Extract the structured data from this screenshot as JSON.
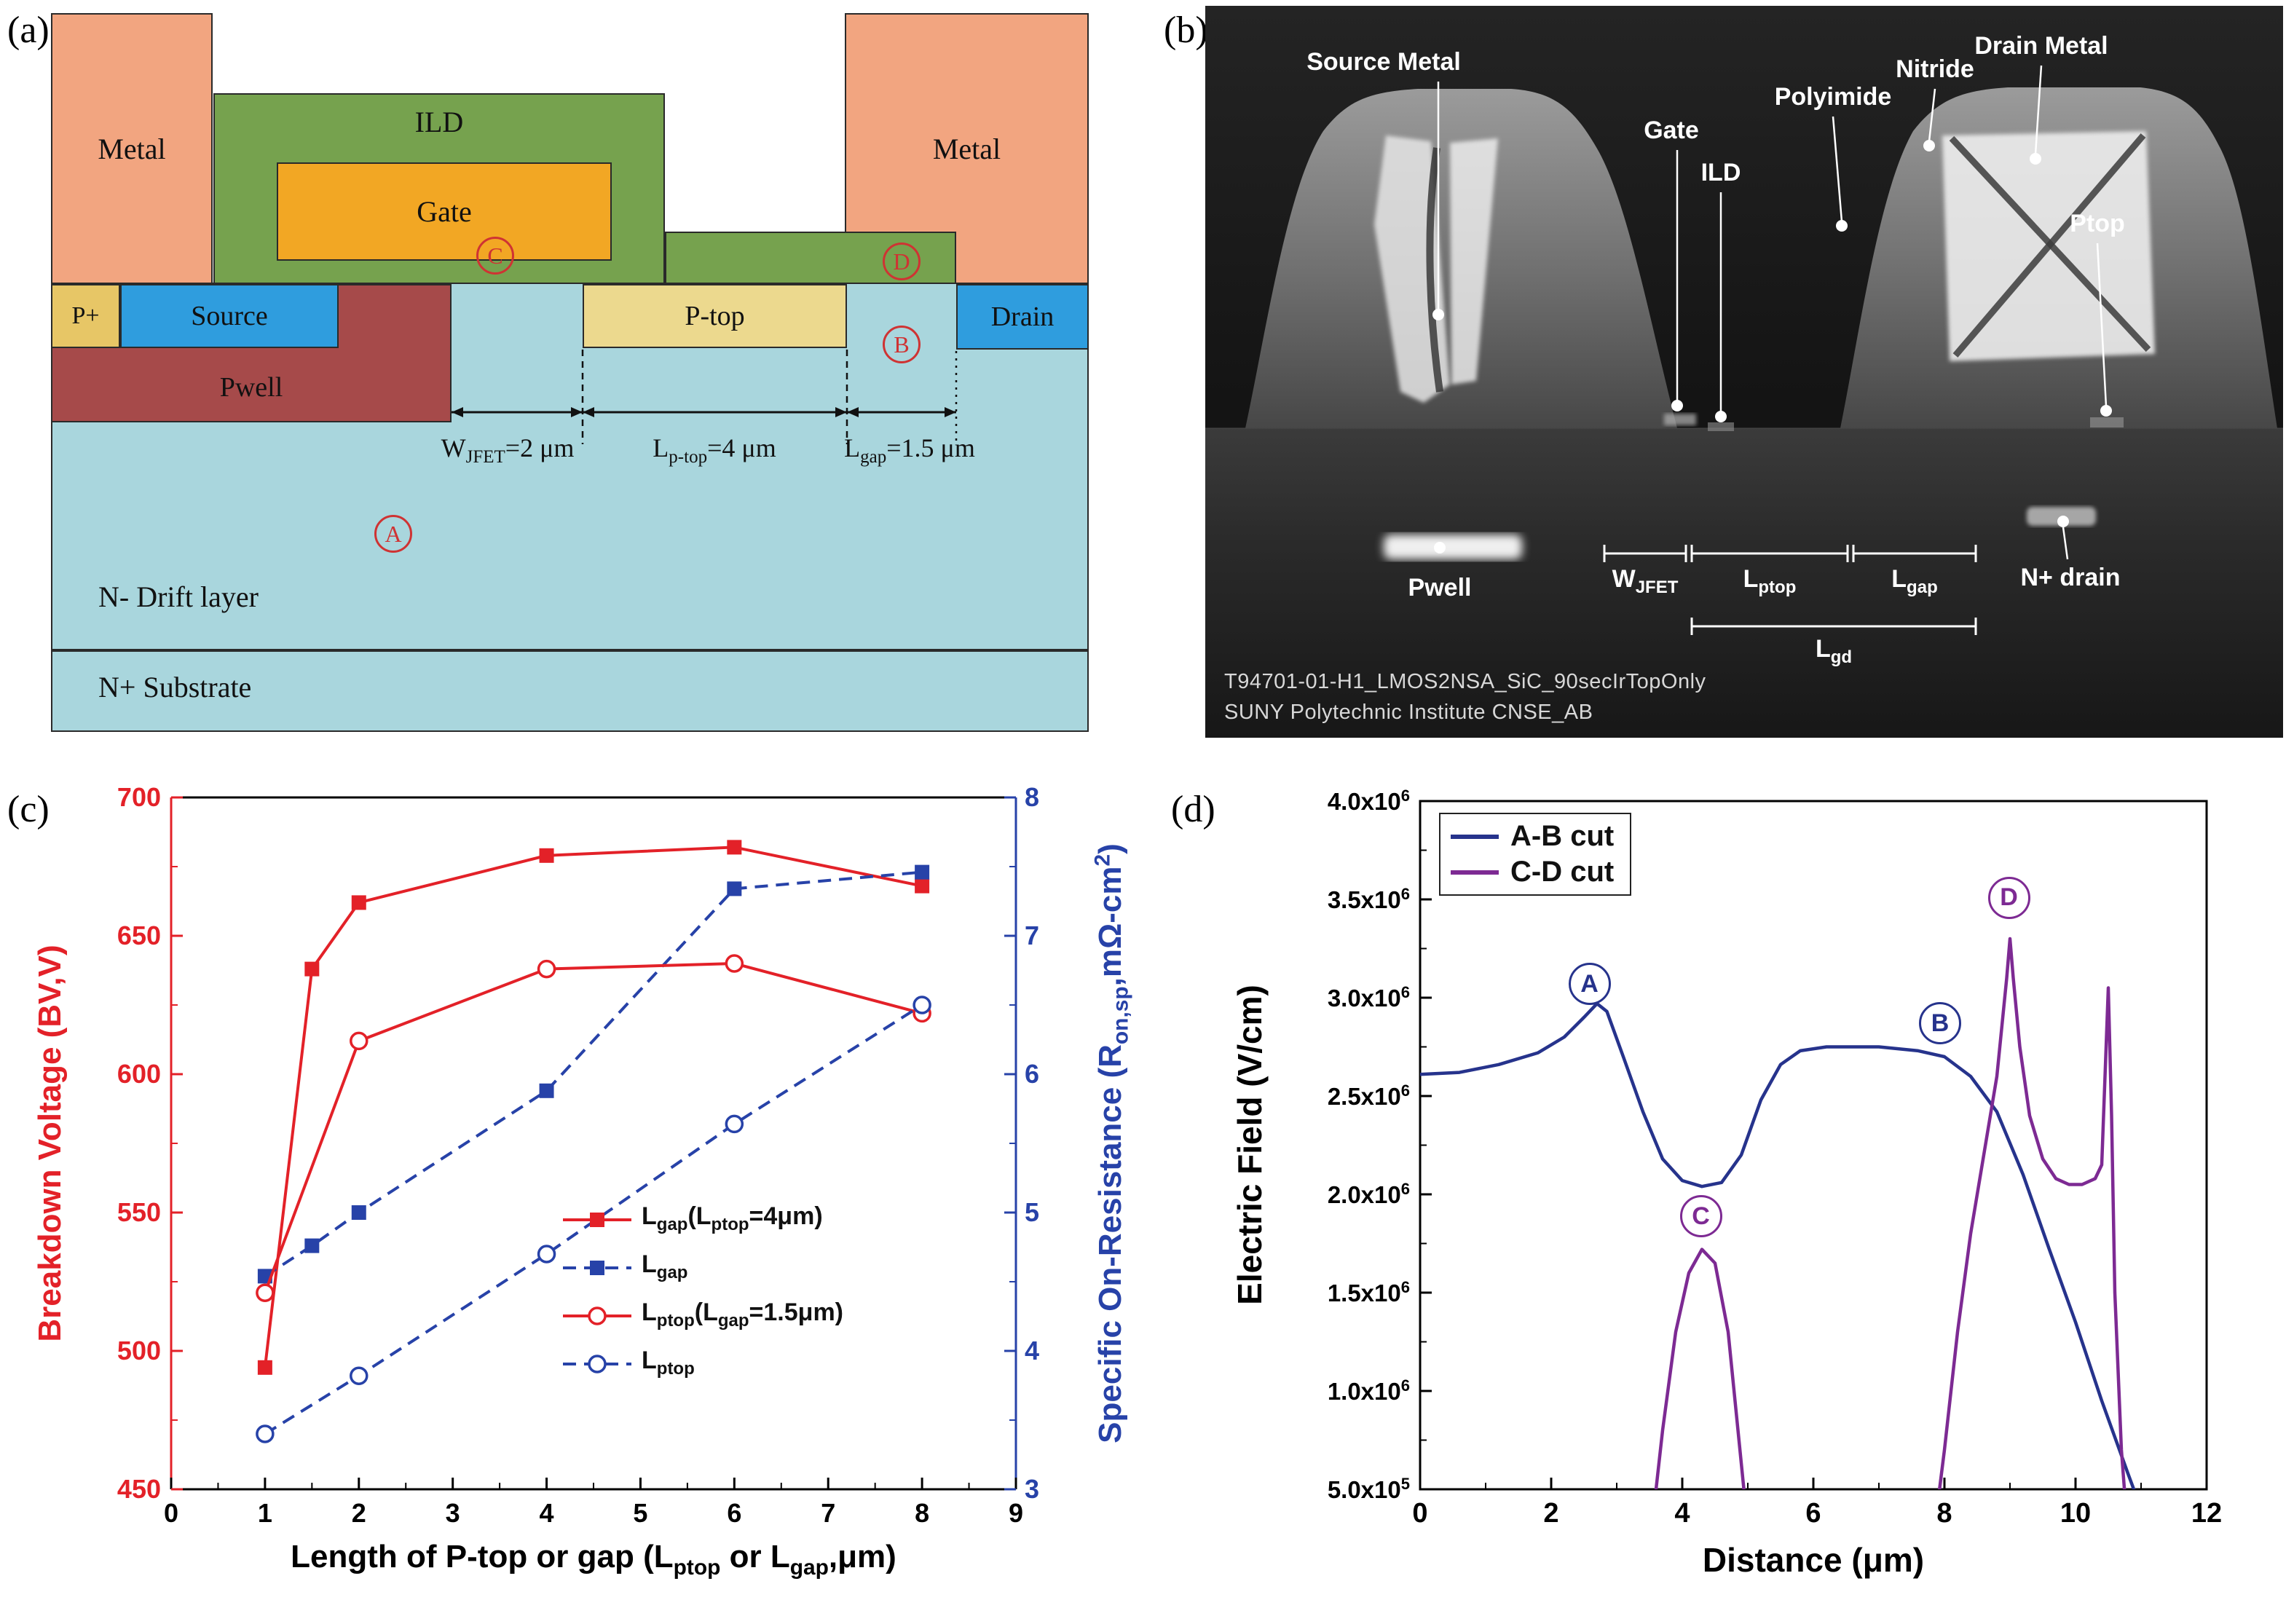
{
  "figure": {
    "panel_labels": {
      "a": "(a)",
      "b": "(b)",
      "c": "(c)",
      "d": "(d)"
    }
  },
  "panel_a": {
    "regions": {
      "metal_left": "Metal",
      "metal_right": "Metal",
      "ild": "ILD",
      "gate": "Gate",
      "p_plus": "P+",
      "source": "Source",
      "pwell": "Pwell",
      "p_top": "P-top",
      "drain": "Drain",
      "drift": "N- Drift layer",
      "substrate": "N+ Substrate"
    },
    "dimensions": {
      "wjfet": "W<sub>JFET</sub>=2 μm",
      "lptop": "L<sub>p-top</sub>=4 μm",
      "lgap": "L<sub>gap</sub>=1.5 μm"
    },
    "markers": {
      "a": "A",
      "b": "B",
      "c": "C",
      "d": "D"
    },
    "colors": {
      "metal": "#f2a580",
      "ild": "#76a24e",
      "gate": "#f2a724",
      "body": "#a9d6dd",
      "p_plus": "#e7c666",
      "p_top": "#ecd98e",
      "n_contact": "#2f9dde",
      "pwell": "#a64a4a",
      "marker_circle": "#cf3333"
    }
  },
  "panel_b": {
    "labels": {
      "source_metal": "Source Metal",
      "gate": "Gate",
      "ild": "ILD",
      "polyimide": "Polyimide",
      "nitride": "Nitride",
      "drain_metal": "Drain Metal",
      "ptop": "Ptop",
      "pwell": "Pwell",
      "wjfet": "W<sub>JFET</sub>",
      "lptop": "L<sub>ptop</sub>",
      "lgap": "L<sub>gap</sub>",
      "lgd": "L<sub>gd</sub>",
      "n_drain": "N+ drain"
    },
    "captions": [
      "T94701-01-H1_LMOS2NSA_SiC_90secIrTopOnly",
      "SUNY Polytechnic Institute CNSE_AB"
    ]
  },
  "chart_data": [
    {
      "id": "c",
      "type": "line",
      "xlabel": "Length of P-top or gap (L<sub>ptop</sub> or L<sub>gap</sub>,μm)",
      "ylabel_left": "Breakdown Voltage (BV,V)",
      "ylabel_right": "Specific On-Resistance (R<sub>on,sp</sub>,mΩ-cm<sup>2</sup>)",
      "xlim": [
        0,
        9
      ],
      "xticks": [
        0,
        1,
        2,
        3,
        4,
        5,
        6,
        7,
        8,
        9
      ],
      "ylim_left": [
        450,
        700
      ],
      "yticks_left": [
        450,
        500,
        550,
        600,
        650,
        700
      ],
      "ylim_right": [
        3,
        8
      ],
      "yticks_right": [
        3,
        4,
        5,
        6,
        7,
        8
      ],
      "grid": false,
      "legend_position": "center-right",
      "axis_colors": {
        "left": "#e32128",
        "right": "#2742a8",
        "frame": "#000000"
      },
      "series": [
        {
          "name": "L<sub>gap</sub>(L<sub>ptop</sub>=4μm)",
          "axis": "left",
          "color": "#e32128",
          "line": "solid",
          "marker": "square-filled",
          "x": [
            1,
            1.5,
            2,
            4,
            6,
            8
          ],
          "y": [
            494,
            638,
            662,
            679,
            682,
            668
          ]
        },
        {
          "name": "L<sub>gap</sub>",
          "axis": "right",
          "color": "#2742a8",
          "line": "dashed",
          "marker": "square-filled",
          "x": [
            1,
            1.5,
            2,
            4,
            6,
            8
          ],
          "y": [
            4.54,
            4.76,
            5.0,
            5.88,
            7.34,
            7.46
          ]
        },
        {
          "name": "L<sub>ptop</sub>(L<sub>gap</sub>=1.5μm)",
          "axis": "left",
          "color": "#e32128",
          "line": "solid",
          "marker": "circle-open",
          "x": [
            1,
            2,
            4,
            6,
            8
          ],
          "y": [
            521,
            612,
            638,
            640,
            622
          ]
        },
        {
          "name": "L<sub>ptop</sub>",
          "axis": "right",
          "color": "#2742a8",
          "line": "dashed",
          "marker": "circle-open",
          "x": [
            1,
            2,
            4,
            6,
            8
          ],
          "y": [
            3.4,
            3.82,
            4.7,
            5.64,
            6.5
          ]
        }
      ]
    },
    {
      "id": "d",
      "type": "line",
      "xlabel": "Distance (μm)",
      "ylabel": "Electric Field (V/cm)",
      "xlim": [
        0,
        12
      ],
      "xticks": [
        0,
        2,
        4,
        6,
        8,
        10,
        12
      ],
      "ylim": [
        500000,
        4000000
      ],
      "yticks": [
        {
          "v": 500000,
          "label": "5.0x10<sup>5</sup>"
        },
        {
          "v": 1000000,
          "label": "1.0x10<sup>6</sup>"
        },
        {
          "v": 1500000,
          "label": "1.5x10<sup>6</sup>"
        },
        {
          "v": 2000000,
          "label": "2.0x10<sup>6</sup>"
        },
        {
          "v": 2500000,
          "label": "2.5x10<sup>6</sup>"
        },
        {
          "v": 3000000,
          "label": "3.0x10<sup>6</sup>"
        },
        {
          "v": 3500000,
          "label": "3.5x10<sup>6</sup>"
        },
        {
          "v": 4000000,
          "label": "4.0x10<sup>6</sup>"
        }
      ],
      "grid": false,
      "legend_position": "top-left",
      "series": [
        {
          "name": "A-B cut",
          "color": "#26338c",
          "y_mult": 1000000,
          "segments": [
            [
              [
                0,
                2.61
              ],
              [
                0.6,
                2.62
              ],
              [
                1.2,
                2.66
              ],
              [
                1.8,
                2.72
              ],
              [
                2.2,
                2.8
              ],
              [
                2.5,
                2.9
              ],
              [
                2.7,
                2.97
              ],
              [
                2.85,
                2.93
              ],
              [
                3.1,
                2.7
              ],
              [
                3.4,
                2.42
              ],
              [
                3.7,
                2.18
              ],
              [
                4.0,
                2.07
              ],
              [
                4.3,
                2.04
              ],
              [
                4.6,
                2.06
              ],
              [
                4.9,
                2.2
              ],
              [
                5.2,
                2.48
              ],
              [
                5.5,
                2.66
              ],
              [
                5.8,
                2.73
              ],
              [
                6.2,
                2.75
              ],
              [
                7.0,
                2.75
              ],
              [
                7.6,
                2.73
              ],
              [
                8.0,
                2.7
              ],
              [
                8.4,
                2.6
              ],
              [
                8.8,
                2.42
              ],
              [
                9.2,
                2.1
              ],
              [
                9.6,
                1.72
              ],
              [
                10.0,
                1.35
              ],
              [
                10.4,
                0.95
              ],
              [
                10.8,
                0.58
              ],
              [
                11.0,
                0.4
              ]
            ]
          ]
        },
        {
          "name": "C-D cut",
          "color": "#7d2a93",
          "y_mult": 1000000,
          "segments": [
            [
              [
                3.55,
                0.35
              ],
              [
                3.7,
                0.8
              ],
              [
                3.9,
                1.3
              ],
              [
                4.1,
                1.6
              ],
              [
                4.3,
                1.72
              ],
              [
                4.5,
                1.65
              ],
              [
                4.7,
                1.3
              ],
              [
                4.85,
                0.8
              ],
              [
                5.0,
                0.3
              ]
            ],
            [
              [
                7.85,
                0.3
              ],
              [
                8.0,
                0.7
              ],
              [
                8.2,
                1.3
              ],
              [
                8.4,
                1.8
              ],
              [
                8.6,
                2.2
              ],
              [
                8.8,
                2.6
              ],
              [
                8.95,
                3.1
              ],
              [
                9.0,
                3.3
              ],
              [
                9.05,
                3.1
              ],
              [
                9.15,
                2.75
              ],
              [
                9.3,
                2.4
              ],
              [
                9.5,
                2.18
              ],
              [
                9.7,
                2.08
              ],
              [
                9.9,
                2.05
              ],
              [
                10.1,
                2.05
              ],
              [
                10.3,
                2.08
              ],
              [
                10.4,
                2.15
              ],
              [
                10.45,
                2.6
              ],
              [
                10.5,
                3.05
              ],
              [
                10.55,
                2.4
              ],
              [
                10.6,
                1.5
              ],
              [
                10.7,
                0.7
              ],
              [
                10.78,
                0.35
              ]
            ]
          ]
        }
      ],
      "annotations": [
        {
          "label": "A",
          "x": 2.55,
          "y": 3080000,
          "color": "#26338c"
        },
        {
          "label": "B",
          "x": 7.9,
          "y": 2880000,
          "color": "#26338c"
        },
        {
          "label": "C",
          "x": 4.25,
          "y": 1900000,
          "color": "#7d2a93"
        },
        {
          "label": "D",
          "x": 8.95,
          "y": 3520000,
          "color": "#7d2a93"
        }
      ]
    }
  ]
}
